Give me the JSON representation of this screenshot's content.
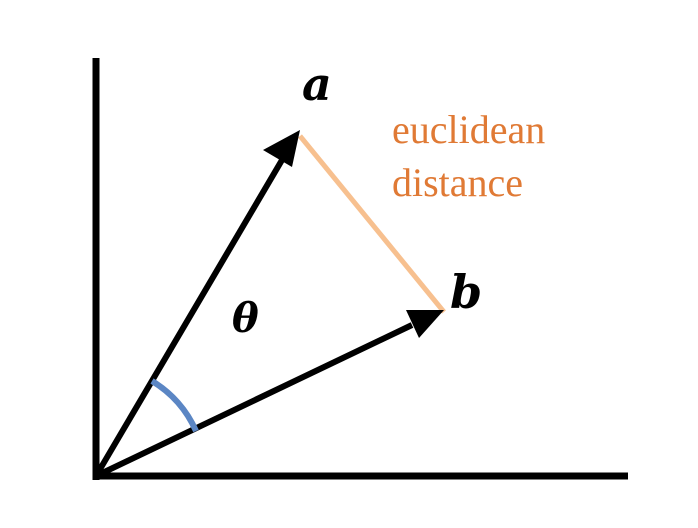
{
  "labels": {
    "vector_a": "a",
    "vector_b": "b",
    "angle": "θ",
    "distance_line1": "euclidean",
    "distance_line2": "distance"
  },
  "colors": {
    "axis": "#000000",
    "vector": "#000000",
    "distance_line": "#f7c08f",
    "distance_text": "#e07a35",
    "angle_arc": "#5b86c4"
  }
}
